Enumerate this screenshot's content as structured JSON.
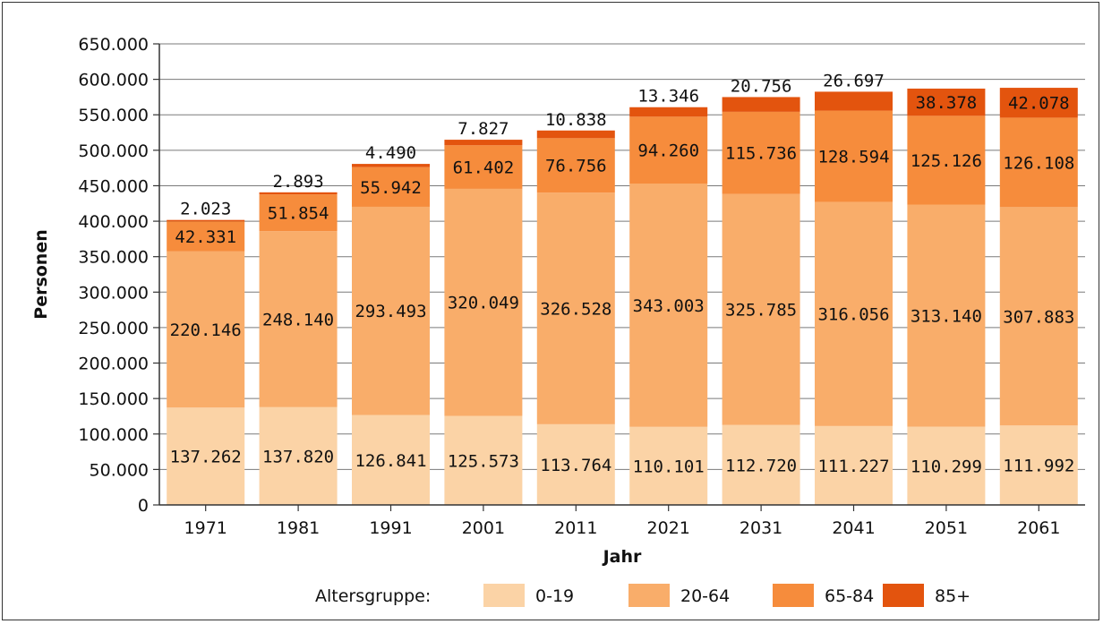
{
  "chart_data": {
    "type": "bar",
    "stacked": true,
    "xlabel": "Jahr",
    "ylabel": "Personen",
    "ylim": [
      0,
      650000
    ],
    "yticks": [
      0,
      50000,
      100000,
      150000,
      200000,
      250000,
      300000,
      350000,
      400000,
      450000,
      500000,
      550000,
      600000,
      650000
    ],
    "ytick_labels": [
      "0",
      "50.000",
      "100.000",
      "150.000",
      "200.000",
      "250.000",
      "300.000",
      "350.000",
      "400.000",
      "450.000",
      "500.000",
      "550.000",
      "600.000",
      "650.000"
    ],
    "grid": "horizontal",
    "categories": [
      "1971",
      "1981",
      "1991",
      "2001",
      "2011",
      "2021",
      "2031",
      "2041",
      "2051",
      "2061"
    ],
    "series": [
      {
        "name": "0-19",
        "color": "#fbd3a6",
        "values": [
          137262,
          137820,
          126841,
          125573,
          113764,
          110101,
          112720,
          111227,
          110299,
          111992
        ],
        "labels": [
          "137.262",
          "137.820",
          "126.841",
          "125.573",
          "113.764",
          "110.101",
          "112.720",
          "111.227",
          "110.299",
          "111.992"
        ]
      },
      {
        "name": "20-64",
        "color": "#f9ad6a",
        "values": [
          220146,
          248140,
          293493,
          320049,
          326528,
          343003,
          325785,
          316056,
          313140,
          307883
        ],
        "labels": [
          "220.146",
          "248.140",
          "293.493",
          "320.049",
          "326.528",
          "343.003",
          "325.785",
          "316.056",
          "313.140",
          "307.883"
        ]
      },
      {
        "name": "65-84",
        "color": "#f68c3c",
        "values": [
          42331,
          51854,
          55942,
          61402,
          76756,
          94260,
          115736,
          128594,
          125126,
          126108
        ],
        "labels": [
          "42.331",
          "51.854",
          "55.942",
          "61.402",
          "76.756",
          "94.260",
          "115.736",
          "128.594",
          "125.126",
          "126.108"
        ]
      },
      {
        "name": "85+",
        "color": "#e3540e",
        "values": [
          2023,
          2893,
          4490,
          7827,
          10838,
          13346,
          20756,
          26697,
          38378,
          42078
        ],
        "labels": [
          "2.023",
          "2.893",
          "4.490",
          "7.827",
          "10.838",
          "13.346",
          "20.756",
          "26.697",
          "38.378",
          "42.078"
        ]
      }
    ],
    "legend": {
      "title": "Altersgruppe:",
      "placement": "bottom"
    }
  }
}
